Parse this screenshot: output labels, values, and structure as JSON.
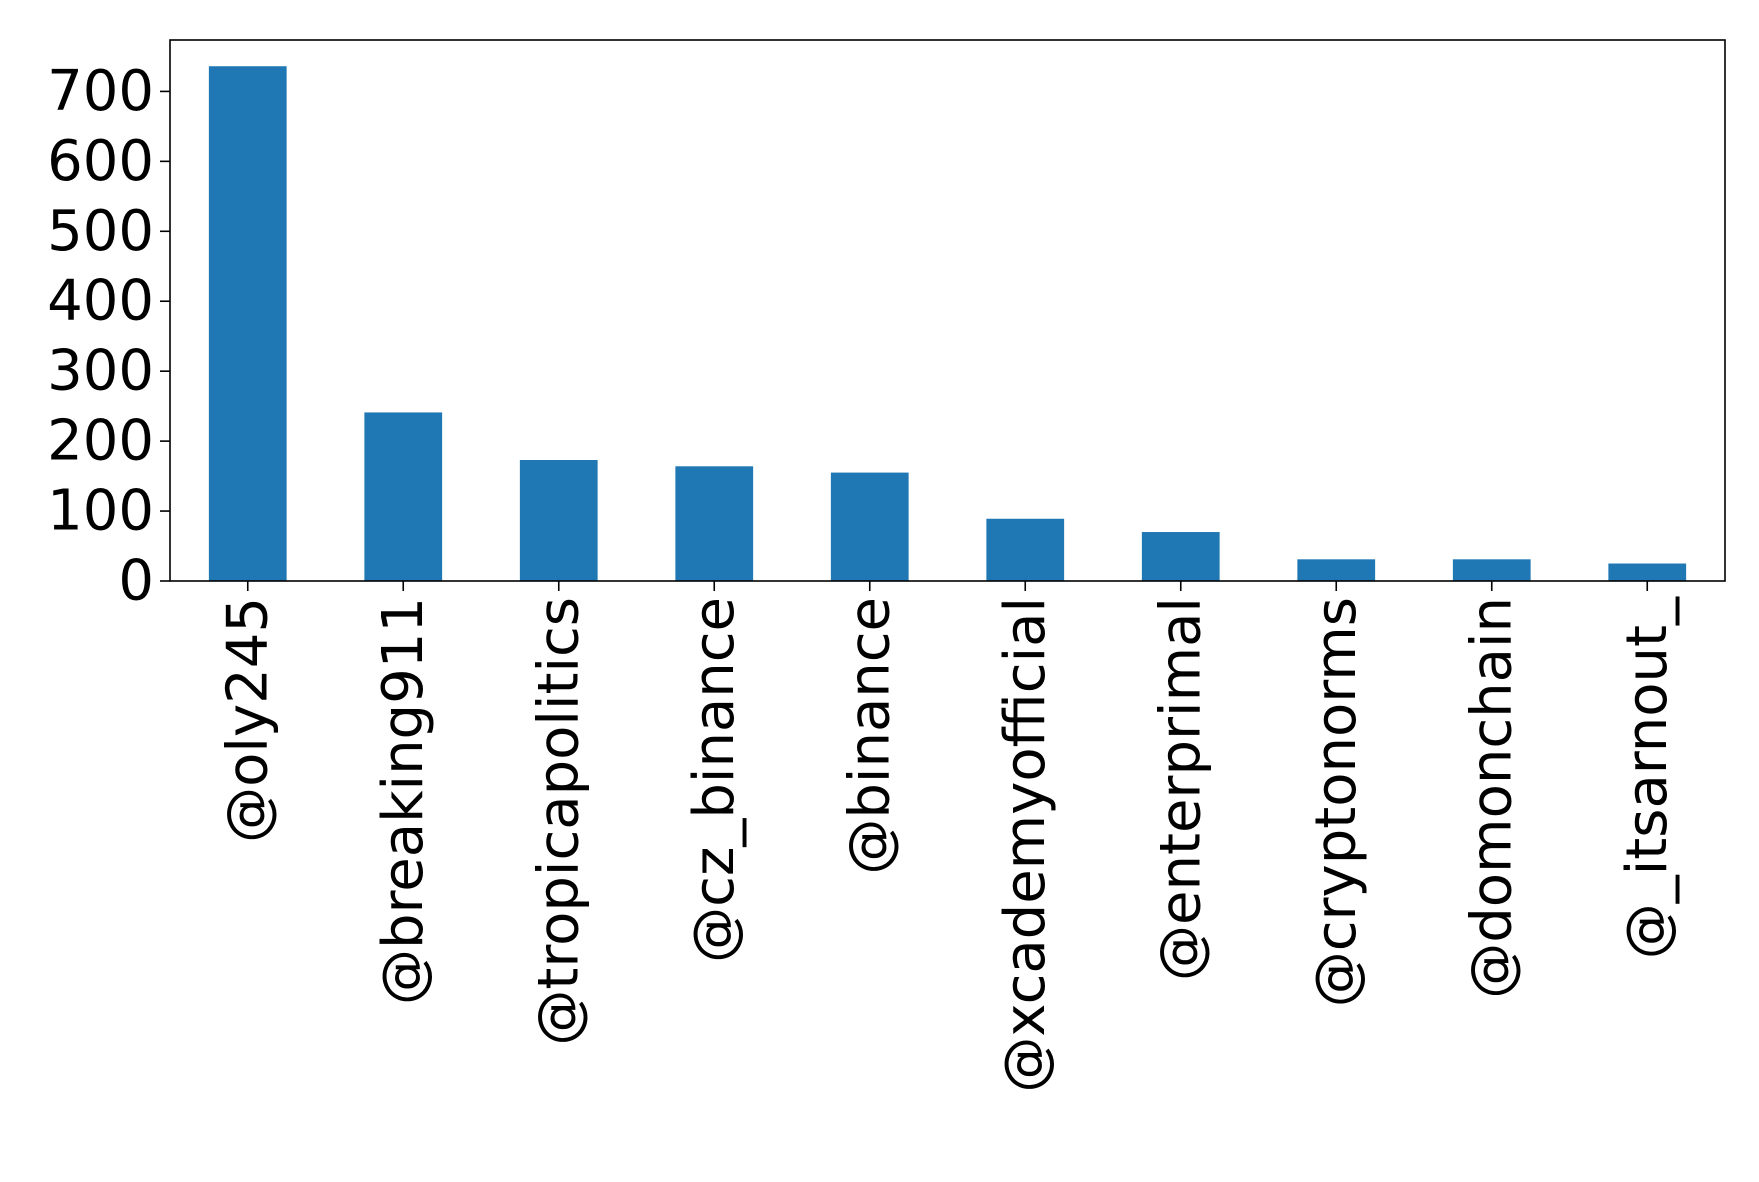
{
  "chart_data": {
    "type": "bar",
    "categories": [
      "@oly245",
      "@breaking911",
      "@tropicapolitics",
      "@cz_binance",
      "@binance",
      "@xcademyofficial",
      "@enterprimal",
      "@cryptonorms",
      "@domonchain",
      "@_itsarnout_"
    ],
    "values": [
      736,
      241,
      173,
      164,
      155,
      89,
      70,
      31,
      31,
      25
    ],
    "title": "",
    "xlabel": "",
    "ylabel": "",
    "ylim": [
      0,
      773.5
    ],
    "yticks": [
      "0",
      "100",
      "200",
      "300",
      "400",
      "500",
      "600",
      "700"
    ],
    "bar_color": "#1f77b4",
    "grid": false
  }
}
